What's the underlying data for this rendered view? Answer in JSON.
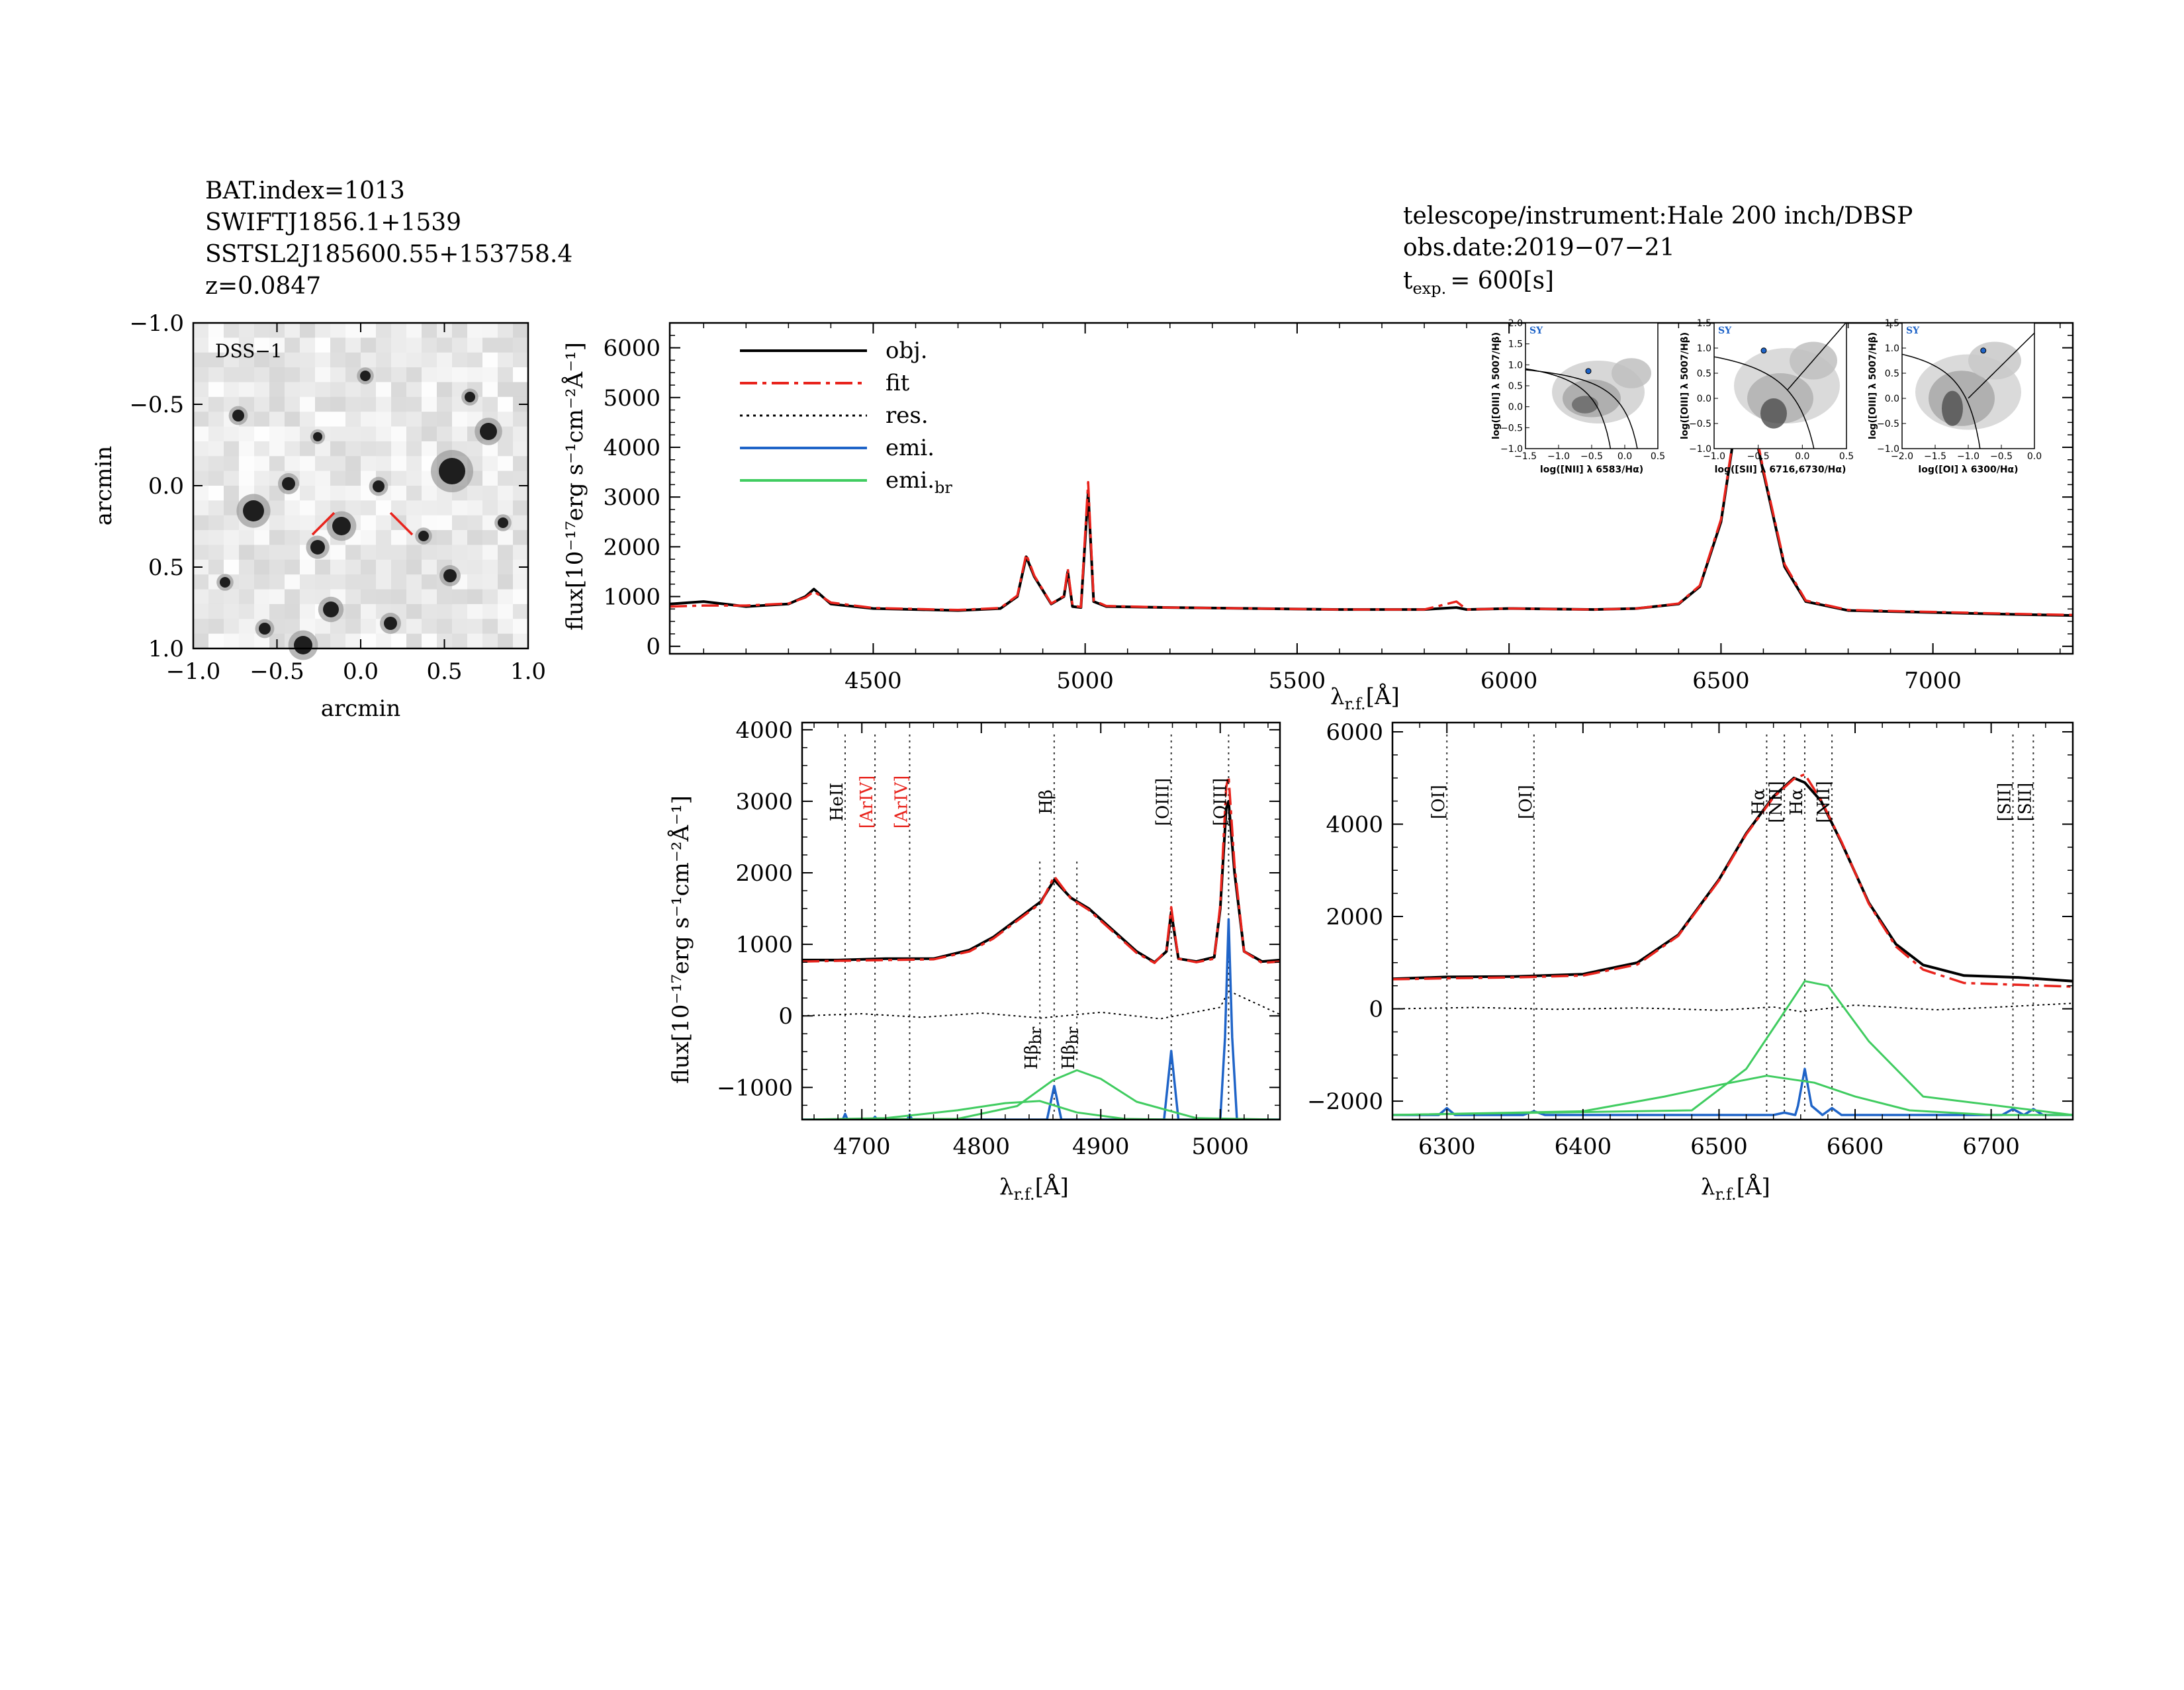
{
  "header": {
    "left": [
      "BAT.index=1013",
      "SWIFTJ1856.1+1539",
      "SSTSL2J185600.55+153758.4",
      "z=0.0847"
    ],
    "right": [
      "telescope/instrument:Hale 200 inch/DBSP",
      "obs.date:2019−07−21"
    ],
    "texp_t": "t",
    "texp_sub": "exp.",
    "texp_val": "= 600[s]"
  },
  "image": {
    "label": "DSS−1",
    "xlabel": "arcmin",
    "ylabel": "arcmin",
    "xticks": [
      "−1.0",
      "−0.5",
      "0.0",
      "0.5",
      "1.0"
    ],
    "yticks": [
      "1.0",
      "0.5",
      "0.0",
      "−0.5",
      "−1.0"
    ]
  },
  "labels": {
    "flux_y": "flux[10⁻¹⁷erg s⁻¹cm⁻²Å⁻¹]",
    "lambda_main": "λ",
    "lambda_sub": "r.f.",
    "lambda_unit": "[Å]"
  },
  "legend": [
    {
      "label": "obj.",
      "color": "#000000",
      "dash": ""
    },
    {
      "label": "fit",
      "color": "#e8231c",
      "dash": "26,8,6,8"
    },
    {
      "label": "res.",
      "color": "#000000",
      "dash": "4,6"
    },
    {
      "label": "emi.",
      "color": "#1f64c8",
      "dash": ""
    },
    {
      "label": "emi.",
      "sub": "br",
      "color": "#40cc60",
      "dash": ""
    }
  ],
  "colors": {
    "obj": "#000000",
    "fit": "#e8231c",
    "emi": "#1f64c8",
    "emi_br": "#40cc60",
    "mark": "#e8231c"
  },
  "chart_data": [
    {
      "type": "line",
      "id": "main",
      "xlim": [
        4020,
        7330
      ],
      "ylim": [
        -150,
        6500
      ],
      "xticks": [
        4500,
        5000,
        5500,
        6000,
        6500,
        7000
      ],
      "yticks": [
        0,
        1000,
        2000,
        3000,
        4000,
        5000,
        6000
      ],
      "series": [
        {
          "name": "obj.",
          "x": [
            4020,
            4100,
            4200,
            4300,
            4340,
            4360,
            4400,
            4500,
            4600,
            4700,
            4800,
            4840,
            4861,
            4880,
            4920,
            4950,
            4959,
            4970,
            4990,
            5007,
            5020,
            5050,
            5200,
            5400,
            5600,
            5800,
            5876,
            5900,
            6000,
            6200,
            6300,
            6400,
            6450,
            6500,
            6530,
            6563,
            6600,
            6650,
            6700,
            6800,
            7000,
            7100,
            7200,
            7330
          ],
          "y": [
            850,
            900,
            800,
            850,
            1000,
            1150,
            850,
            760,
            740,
            720,
            760,
            1000,
            1800,
            1400,
            850,
            1000,
            1500,
            800,
            780,
            3100,
            900,
            800,
            780,
            760,
            740,
            740,
            780,
            740,
            760,
            740,
            760,
            850,
            1200,
            2500,
            4200,
            5000,
            3500,
            1600,
            900,
            720,
            680,
            660,
            640,
            620
          ]
        },
        {
          "name": "fit",
          "x": [
            4020,
            4100,
            4200,
            4300,
            4340,
            4360,
            4400,
            4500,
            4600,
            4700,
            4800,
            4840,
            4861,
            4880,
            4920,
            4950,
            4959,
            4970,
            4990,
            5007,
            5020,
            5050,
            5200,
            5400,
            5600,
            5800,
            5876,
            5900,
            6000,
            6200,
            6300,
            6400,
            6450,
            6500,
            6530,
            6563,
            6600,
            6650,
            6700,
            6800,
            7000,
            7100,
            7200,
            7330
          ],
          "y": [
            800,
            820,
            820,
            860,
            980,
            1100,
            880,
            770,
            750,
            730,
            770,
            1020,
            1850,
            1420,
            860,
            1010,
            1560,
            820,
            790,
            3300,
            920,
            810,
            780,
            760,
            740,
            740,
            900,
            740,
            760,
            740,
            760,
            860,
            1220,
            2550,
            4250,
            5100,
            3550,
            1650,
            920,
            730,
            690,
            670,
            650,
            630
          ]
        }
      ],
      "insets": [
        {
          "xlabel": "log([NII] λ 6583/Hα)",
          "ylabel": "log([OIII] λ 5007/Hβ)",
          "xlim": [
            -1.5,
            0.5
          ],
          "ylim": [
            -1.0,
            2.0
          ],
          "xticks": [
            "−1.5",
            "−1.0",
            "−0.5",
            "0.0",
            "0.5"
          ],
          "yticks": [
            "2.0",
            "1.5",
            "1.0",
            "0.5",
            "0.0",
            "−0.5",
            "−1.0"
          ],
          "tag": "SY",
          "point": [
            -0.55,
            0.85
          ]
        },
        {
          "xlabel": "log([SII] λ 6716,6730/Hα)",
          "ylabel": "log([OIII] λ 5007/Hβ)",
          "xlim": [
            -1.2,
            0.4
          ],
          "ylim": [
            -1.0,
            1.5
          ],
          "xticks": [
            "−1.0",
            "−0.5",
            "0.0",
            "0.5"
          ],
          "yticks": [
            "1.5",
            "1.0",
            "0.5",
            "0.0",
            "−0.5",
            "−1.0"
          ],
          "tag": "SY",
          "point": [
            -0.6,
            0.95
          ]
        },
        {
          "xlabel": "log([OI] λ 6300/Hα)",
          "ylabel": "log([OIII] λ 5007/Hβ)",
          "xlim": [
            -2.2,
            0.0
          ],
          "ylim": [
            -1.0,
            1.5
          ],
          "xticks": [
            "−2.0",
            "−1.5",
            "−1.0",
            "−0.5",
            "0.0"
          ],
          "yticks": [
            "1.5",
            "1.0",
            "0.5",
            "0.0",
            "−0.5",
            "−1.0"
          ],
          "tag": "SY",
          "point": [
            -0.85,
            0.95
          ]
        }
      ]
    },
    {
      "type": "line",
      "id": "hbeta",
      "xlim": [
        4650,
        5050
      ],
      "ylim": [
        -1450,
        4100
      ],
      "xticks": [
        4700,
        4800,
        4900,
        5000
      ],
      "yticks": [
        -1000,
        0,
        1000,
        2000,
        3000,
        4000
      ],
      "lines": [
        {
          "label": "HeII",
          "x": 4686,
          "color": "#000000",
          "y": 3400
        },
        {
          "label": "[ArIV]",
          "x": 4711,
          "color": "#e8231c",
          "y": 3400
        },
        {
          "label": "[ArIV]",
          "x": 4740,
          "color": "#e8231c",
          "y": 3400
        },
        {
          "label": "Hβ",
          "x": 4861,
          "color": "#000000",
          "y": 3400
        },
        {
          "label": "[OIII]",
          "x": 4959,
          "color": "#000000",
          "y": 3400
        },
        {
          "label": "[OIII]",
          "x": 5007,
          "color": "#000000",
          "y": 3400
        },
        {
          "label": "Hβbr",
          "x": 4849,
          "color": "#000000",
          "y": 500
        },
        {
          "label": "Hβbr",
          "x": 4880,
          "color": "#000000",
          "y": 500
        }
      ],
      "series": [
        {
          "name": "obj.",
          "x": [
            4650,
            4680,
            4720,
            4760,
            4790,
            4810,
            4830,
            4850,
            4861,
            4875,
            4890,
            4910,
            4930,
            4945,
            4955,
            4959,
            4965,
            4980,
            4995,
            5000,
            5005,
            5007,
            5012,
            5020,
            5035,
            5050
          ],
          "y": [
            780,
            780,
            800,
            800,
            920,
            1100,
            1350,
            1600,
            1900,
            1650,
            1500,
            1200,
            900,
            750,
            900,
            1450,
            800,
            760,
            820,
            1500,
            2900,
            3000,
            2000,
            900,
            760,
            780
          ]
        },
        {
          "name": "fit",
          "x": [
            4650,
            4680,
            4720,
            4760,
            4790,
            4810,
            4830,
            4850,
            4861,
            4875,
            4890,
            4910,
            4930,
            4945,
            4955,
            4959,
            4965,
            4980,
            4995,
            5000,
            5005,
            5007,
            5012,
            5020,
            5035,
            5050
          ],
          "y": [
            760,
            770,
            780,
            790,
            900,
            1080,
            1330,
            1580,
            1950,
            1640,
            1480,
            1180,
            880,
            740,
            920,
            1520,
            800,
            750,
            800,
            1550,
            3200,
            3350,
            2100,
            900,
            740,
            760
          ]
        },
        {
          "name": "res.",
          "x": [
            4650,
            4700,
            4750,
            4800,
            4850,
            4900,
            4950,
            5000,
            5007,
            5050
          ],
          "y": [
            0,
            30,
            -20,
            40,
            -30,
            50,
            -40,
            120,
            350,
            20
          ]
        },
        {
          "name": "emi.",
          "x": [
            4650,
            4684,
            4686,
            4688,
            4709,
            4711,
            4713,
            4738,
            4740,
            4742,
            4855,
            4861,
            4867,
            4953,
            4959,
            4965,
            5000,
            5004,
            5007,
            5010,
            5014,
            5050
          ],
          "y": [
            -1450,
            -1450,
            -1370,
            -1450,
            -1450,
            -1410,
            -1450,
            -1450,
            -1380,
            -1450,
            -1450,
            -980,
            -1450,
            -1450,
            -490,
            -1450,
            -1450,
            -300,
            1350,
            -300,
            -1450,
            -1450
          ]
        },
        {
          "name": "emi.br",
          "x": [
            4650,
            4720,
            4780,
            4820,
            4849,
            4880,
            4920,
            4960,
            5000,
            5050
          ],
          "y": [
            -1450,
            -1430,
            -1320,
            -1220,
            -1190,
            -1350,
            -1440,
            -1450,
            -1450,
            -1450
          ]
        },
        {
          "name": "emi.br",
          "x": [
            4650,
            4780,
            4830,
            4860,
            4880,
            4900,
            4930,
            4980,
            5050
          ],
          "y": [
            -1450,
            -1440,
            -1260,
            -900,
            -760,
            -880,
            -1200,
            -1430,
            -1450
          ]
        }
      ]
    },
    {
      "type": "line",
      "id": "halpha",
      "xlim": [
        6260,
        6760
      ],
      "ylim": [
        -2400,
        6200
      ],
      "xticks": [
        6300,
        6400,
        6500,
        6600,
        6700
      ],
      "yticks": [
        -2000,
        0,
        2000,
        4000,
        6000
      ],
      "lines": [
        {
          "label": "[OI]",
          "x": 6300,
          "color": "#000000"
        },
        {
          "label": "[OI]",
          "x": 6364,
          "color": "#000000"
        },
        {
          "label": "Hα",
          "x": 6535,
          "color": "#000000"
        },
        {
          "label": "[NII]",
          "x": 6548,
          "color": "#000000"
        },
        {
          "label": "Hα",
          "x": 6563,
          "color": "#000000"
        },
        {
          "label": "[NII]",
          "x": 6583,
          "color": "#000000"
        },
        {
          "label": "[SII]",
          "x": 6716,
          "color": "#000000"
        },
        {
          "label": "[SII]",
          "x": 6731,
          "color": "#000000"
        }
      ],
      "series": [
        {
          "name": "obj.",
          "x": [
            6260,
            6300,
            6350,
            6400,
            6440,
            6470,
            6500,
            6520,
            6540,
            6555,
            6563,
            6575,
            6590,
            6610,
            6630,
            6650,
            6680,
            6720,
            6760
          ],
          "y": [
            650,
            690,
            700,
            750,
            1000,
            1600,
            2800,
            3800,
            4600,
            5000,
            4900,
            4500,
            3600,
            2300,
            1400,
            950,
            720,
            680,
            600
          ]
        },
        {
          "name": "fit",
          "x": [
            6260,
            6300,
            6350,
            6400,
            6440,
            6470,
            6500,
            6520,
            6540,
            6555,
            6563,
            6575,
            6590,
            6610,
            6630,
            6650,
            6680,
            6720,
            6760
          ],
          "y": [
            640,
            660,
            680,
            720,
            960,
            1580,
            2780,
            3780,
            4580,
            4980,
            5080,
            4520,
            3620,
            2280,
            1350,
            850,
            560,
            520,
            480
          ]
        },
        {
          "name": "res.",
          "x": [
            6260,
            6320,
            6380,
            6440,
            6500,
            6540,
            6560,
            6600,
            6660,
            6700,
            6760
          ],
          "y": [
            0,
            30,
            -10,
            20,
            -30,
            40,
            -60,
            80,
            -20,
            30,
            120
          ]
        },
        {
          "name": "emi.",
          "x": [
            6260,
            6294,
            6300,
            6306,
            6356,
            6364,
            6372,
            6540,
            6548,
            6556,
            6558,
            6563,
            6568,
            6576,
            6583,
            6590,
            6708,
            6716,
            6724,
            6731,
            6738,
            6760
          ],
          "y": [
            -2300,
            -2300,
            -2150,
            -2300,
            -2300,
            -2220,
            -2300,
            -2300,
            -2250,
            -2300,
            -2100,
            -1300,
            -2100,
            -2300,
            -2150,
            -2300,
            -2300,
            -2170,
            -2300,
            -2170,
            -2300,
            -2300
          ]
        },
        {
          "name": "emi.br",
          "x": [
            6260,
            6400,
            6460,
            6500,
            6535,
            6570,
            6600,
            6640,
            6700,
            6760
          ],
          "y": [
            -2300,
            -2220,
            -1900,
            -1650,
            -1450,
            -1600,
            -1900,
            -2200,
            -2300,
            -2300
          ]
        },
        {
          "name": "emi.br",
          "x": [
            6260,
            6480,
            6520,
            6545,
            6563,
            6580,
            6610,
            6650,
            6760
          ],
          "y": [
            -2300,
            -2200,
            -1300,
            -200,
            600,
            500,
            -700,
            -1900,
            -2300
          ]
        }
      ]
    }
  ]
}
